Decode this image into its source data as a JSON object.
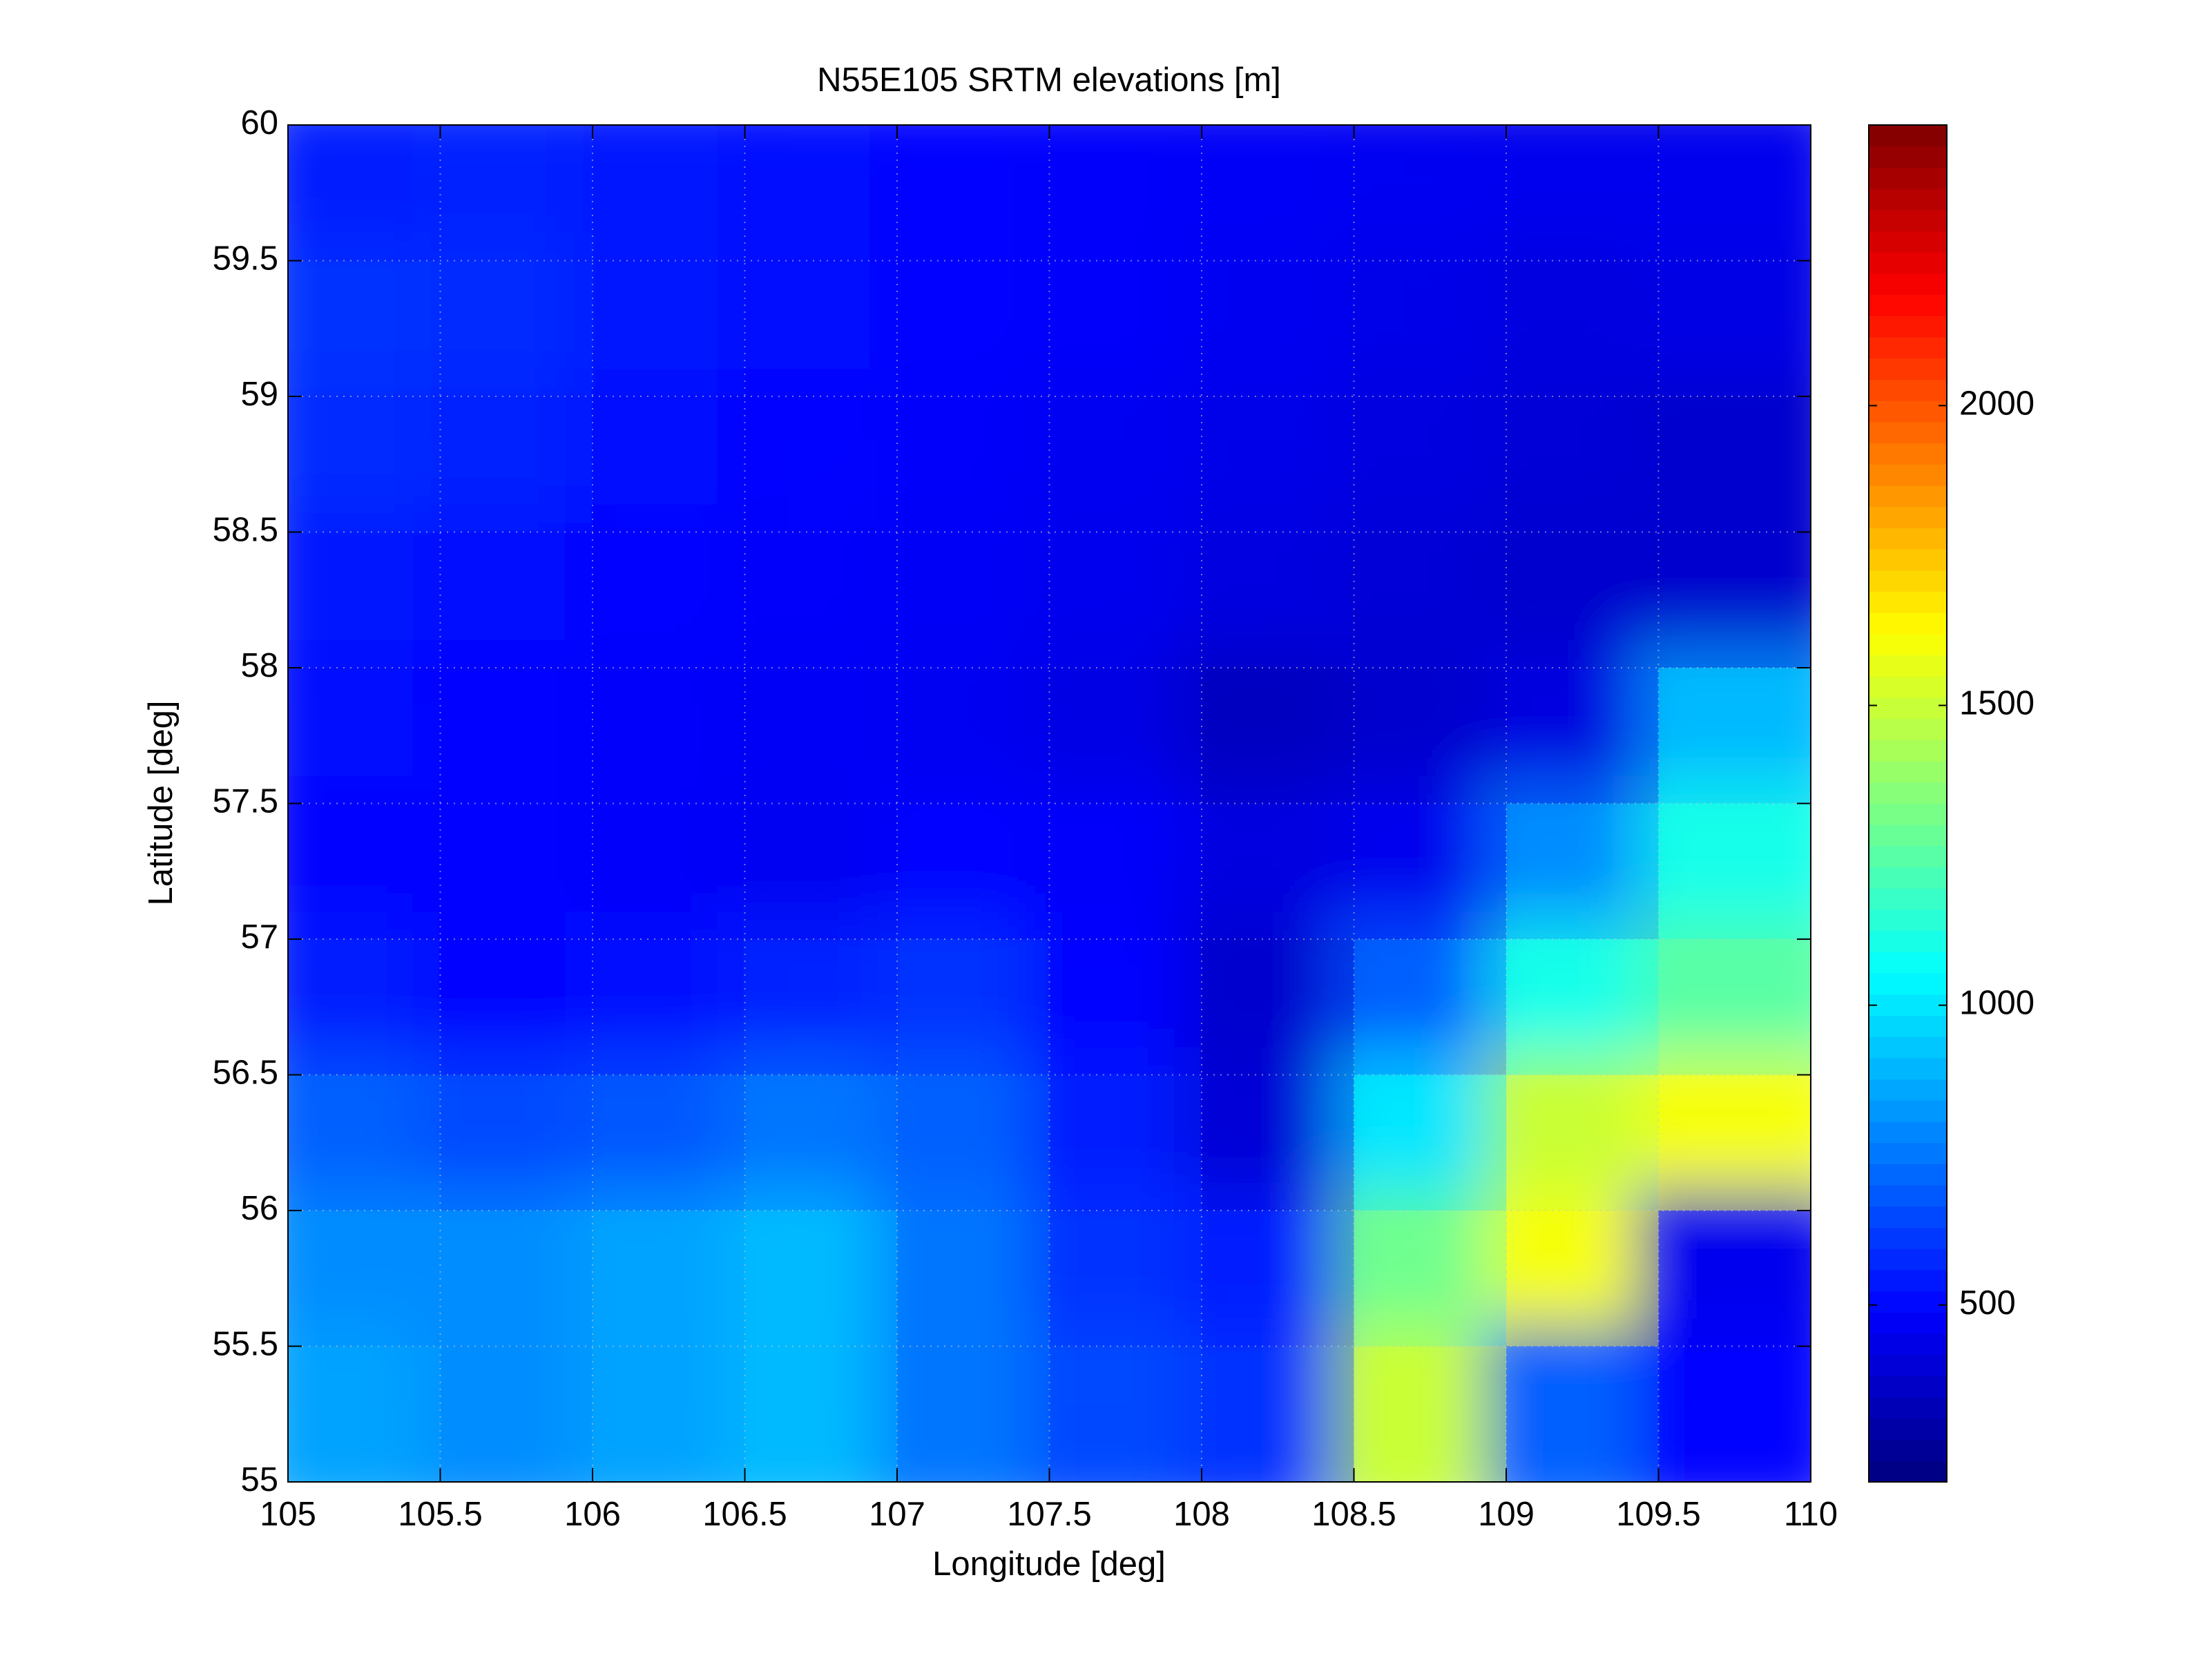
{
  "chart_data": {
    "type": "heatmap",
    "title": "N55E105 SRTM elevations [m]",
    "x_label": "Longitude [deg]",
    "y_label": "Latitude [deg]",
    "x": [
      105.25,
      105.75,
      106.25,
      106.75,
      107.25,
      107.75,
      108.25,
      108.75,
      109.25,
      109.75
    ],
    "y": [
      59.75,
      59.25,
      58.75,
      58.25,
      57.75,
      57.25,
      56.75,
      56.25,
      55.75,
      55.25
    ],
    "z": [
      [
        550,
        560,
        540,
        520,
        500,
        480,
        470,
        460,
        450,
        450
      ],
      [
        600,
        580,
        540,
        520,
        500,
        480,
        460,
        440,
        420,
        430
      ],
      [
        580,
        560,
        520,
        500,
        480,
        460,
        440,
        420,
        400,
        380
      ],
      [
        540,
        520,
        500,
        480,
        470,
        450,
        420,
        400,
        380,
        380
      ],
      [
        520,
        500,
        480,
        470,
        460,
        430,
        350,
        380,
        420,
        900
      ],
      [
        500,
        500,
        480,
        460,
        500,
        480,
        420,
        450,
        800,
        1100
      ],
      [
        550,
        500,
        520,
        560,
        600,
        500,
        380,
        700,
        1100,
        1250
      ],
      [
        700,
        650,
        680,
        750,
        700,
        550,
        400,
        1000,
        1500,
        1600
      ],
      [
        800,
        800,
        850,
        900,
        750,
        600,
        550,
        1300,
        1600,
        450
      ],
      [
        850,
        800,
        850,
        900,
        750,
        650,
        600,
        1500,
        700,
        500
      ]
    ],
    "colormap": "jet",
    "clim": [
      205,
      2468
    ],
    "cticks": [
      500,
      1000,
      1500,
      2000
    ],
    "xlim": [
      105,
      110
    ],
    "ylim": [
      55,
      60
    ],
    "xticks": [
      105,
      105.5,
      106,
      106.5,
      107,
      107.5,
      108,
      108.5,
      109,
      109.5,
      110
    ],
    "yticks": [
      55,
      55.5,
      56,
      56.5,
      57,
      57.5,
      58,
      58.5,
      59,
      59.5,
      60
    ],
    "grid": true
  }
}
